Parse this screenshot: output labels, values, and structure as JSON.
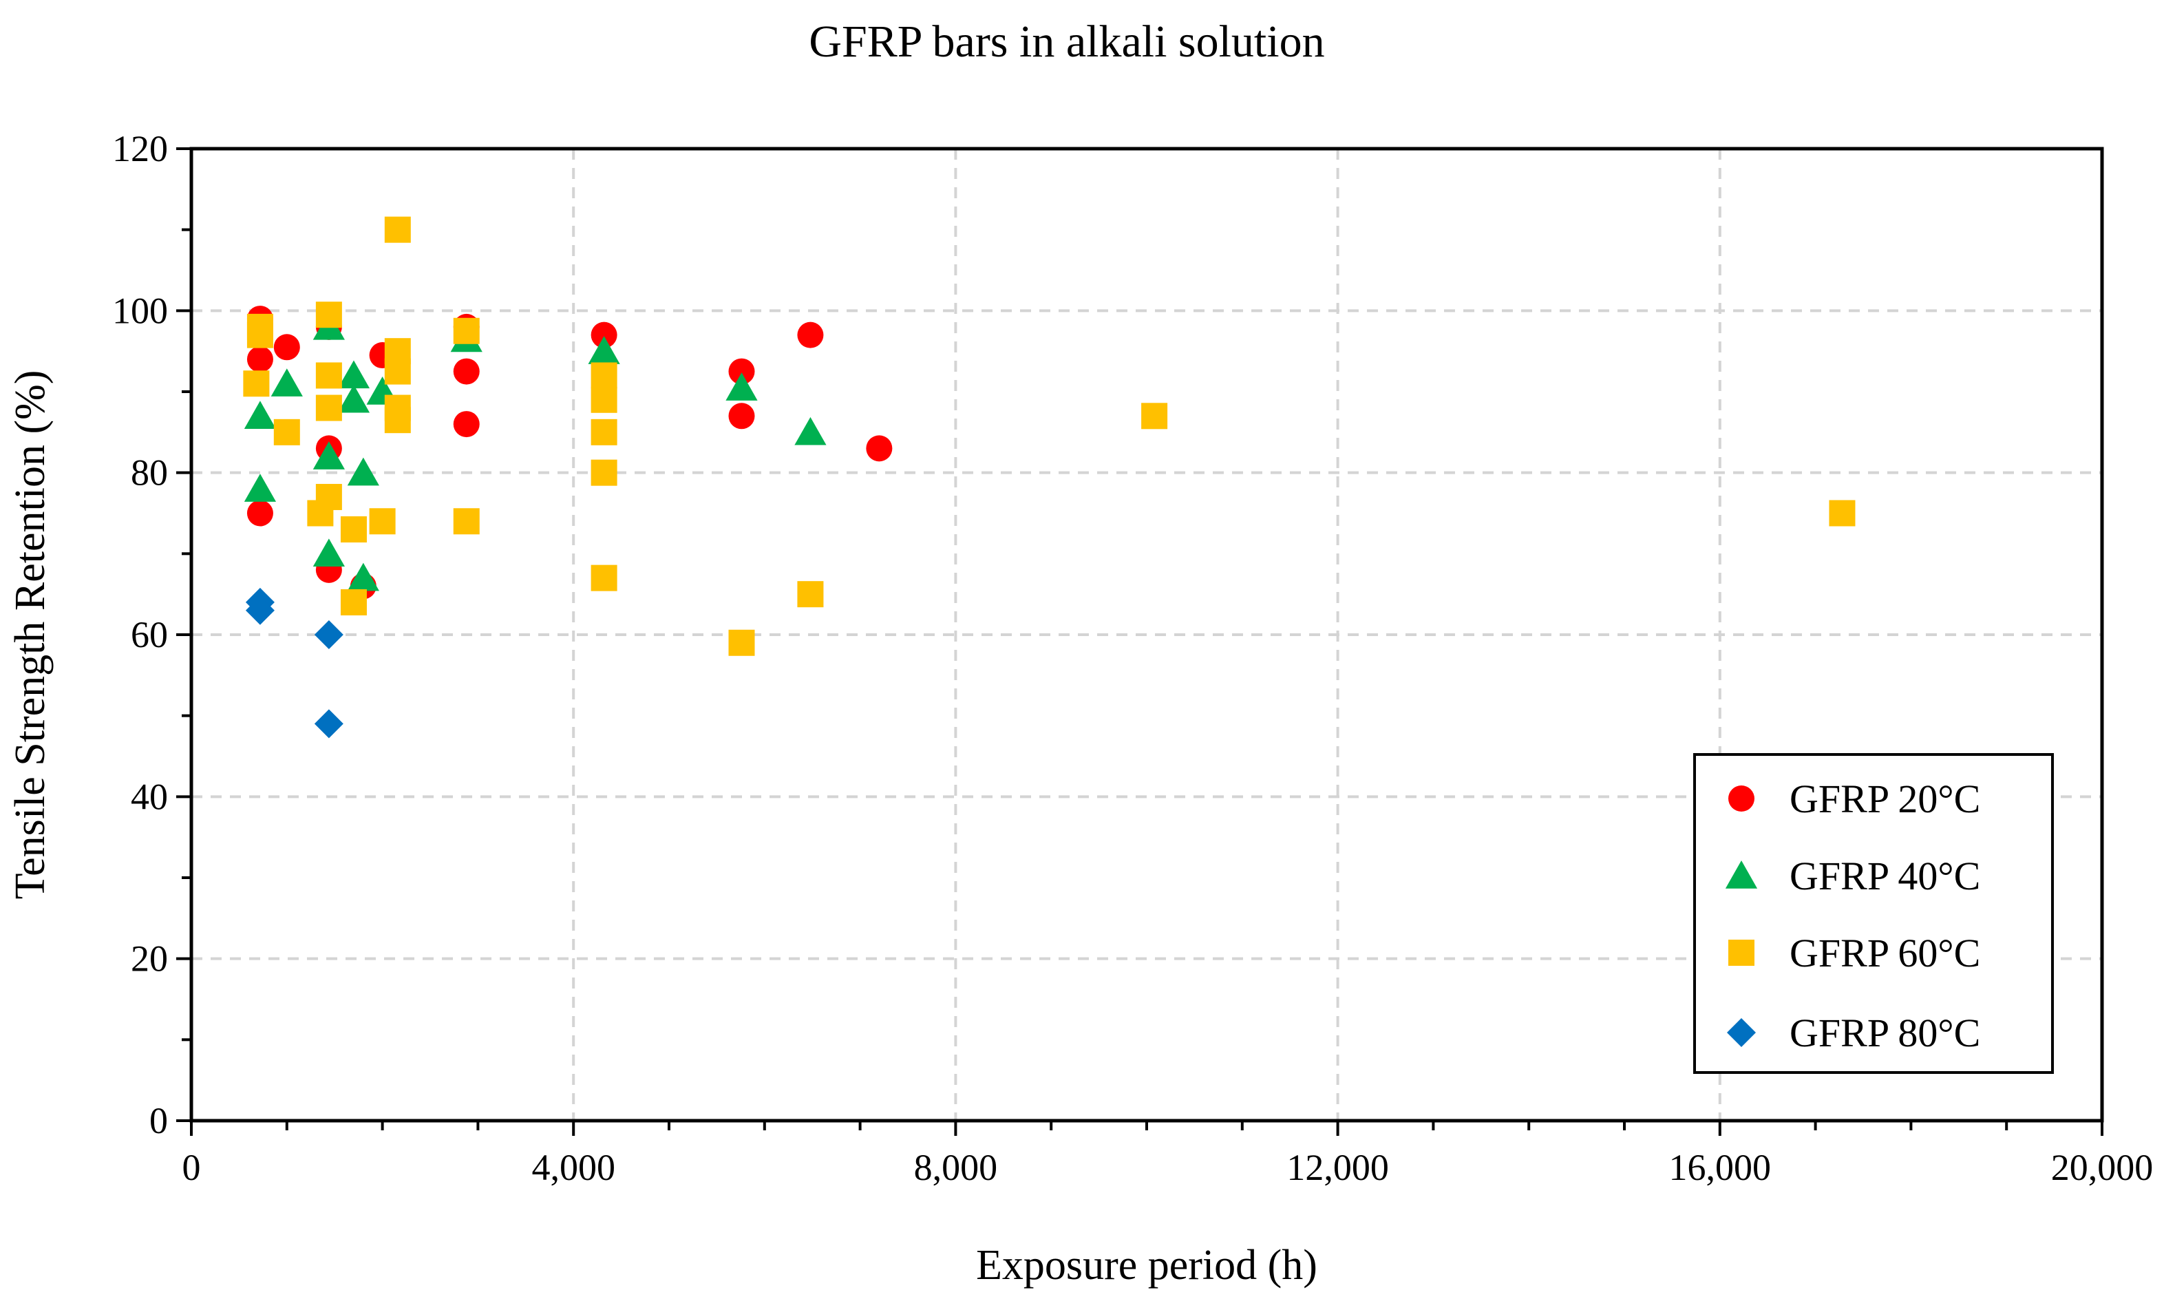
{
  "chart_data": {
    "type": "scatter",
    "title": "GFRP bars in alkali solution",
    "xlabel": "Exposure period (h)",
    "ylabel": "Tensile Strength Retention (%)",
    "xlim": [
      0,
      20000
    ],
    "ylim": [
      0,
      120
    ],
    "x_ticks": [
      0,
      4000,
      8000,
      12000,
      16000,
      20000
    ],
    "x_tick_labels": [
      "0",
      "4,000",
      "8,000",
      "12,000",
      "16,000",
      "20,000"
    ],
    "y_ticks": [
      0,
      20,
      40,
      60,
      80,
      100,
      120
    ],
    "y_tick_labels": [
      "0",
      "20",
      "40",
      "60",
      "80",
      "100",
      "120"
    ],
    "x_minor_step": 1000,
    "y_minor_step": 10,
    "grid": true,
    "legend_position": "bottom-right",
    "series": [
      {
        "name": "GFRP 20°C",
        "marker": "circle",
        "color": "#ff0000",
        "points": [
          [
            720,
            99
          ],
          [
            720,
            94
          ],
          [
            720,
            75
          ],
          [
            1000,
            95.5
          ],
          [
            1440,
            98
          ],
          [
            1440,
            83
          ],
          [
            1440,
            68
          ],
          [
            1800,
            66
          ],
          [
            2000,
            94.5
          ],
          [
            2880,
            98
          ],
          [
            2880,
            92.5
          ],
          [
            2880,
            86
          ],
          [
            4320,
            97
          ],
          [
            5760,
            92.5
          ],
          [
            5760,
            87
          ],
          [
            6480,
            97
          ],
          [
            7200,
            83
          ]
        ]
      },
      {
        "name": "GFRP 40°C",
        "marker": "triangle",
        "color": "#00b050",
        "points": [
          [
            720,
            87
          ],
          [
            720,
            78
          ],
          [
            1000,
            91
          ],
          [
            1440,
            98
          ],
          [
            1440,
            82
          ],
          [
            1440,
            70
          ],
          [
            1700,
            92
          ],
          [
            1700,
            89
          ],
          [
            1800,
            80
          ],
          [
            1800,
            67
          ],
          [
            2000,
            90
          ],
          [
            2880,
            96.5
          ],
          [
            4320,
            95
          ],
          [
            5760,
            90.5
          ],
          [
            6480,
            85
          ]
        ]
      },
      {
        "name": "GFRP 60°C",
        "marker": "square",
        "color": "#ffc000",
        "points": [
          [
            680,
            91
          ],
          [
            720,
            98
          ],
          [
            720,
            97
          ],
          [
            1000,
            85
          ],
          [
            1350,
            75
          ],
          [
            1440,
            99.5
          ],
          [
            1440,
            92
          ],
          [
            1440,
            88
          ],
          [
            1440,
            77
          ],
          [
            1700,
            73
          ],
          [
            1700,
            64
          ],
          [
            2000,
            74
          ],
          [
            2160,
            110
          ],
          [
            2160,
            95
          ],
          [
            2160,
            92.5
          ],
          [
            2160,
            88
          ],
          [
            2160,
            86.5
          ],
          [
            2880,
            97.5
          ],
          [
            2880,
            74
          ],
          [
            4320,
            92
          ],
          [
            4320,
            89
          ],
          [
            4320,
            85
          ],
          [
            4320,
            80
          ],
          [
            4320,
            67
          ],
          [
            5760,
            59
          ],
          [
            6480,
            65
          ],
          [
            10080,
            87
          ],
          [
            17280,
            75
          ]
        ]
      },
      {
        "name": "GFRP 80°C",
        "marker": "diamond",
        "color": "#0070c0",
        "points": [
          [
            720,
            64
          ],
          [
            720,
            63
          ],
          [
            1440,
            60
          ],
          [
            1440,
            49
          ]
        ]
      }
    ]
  }
}
